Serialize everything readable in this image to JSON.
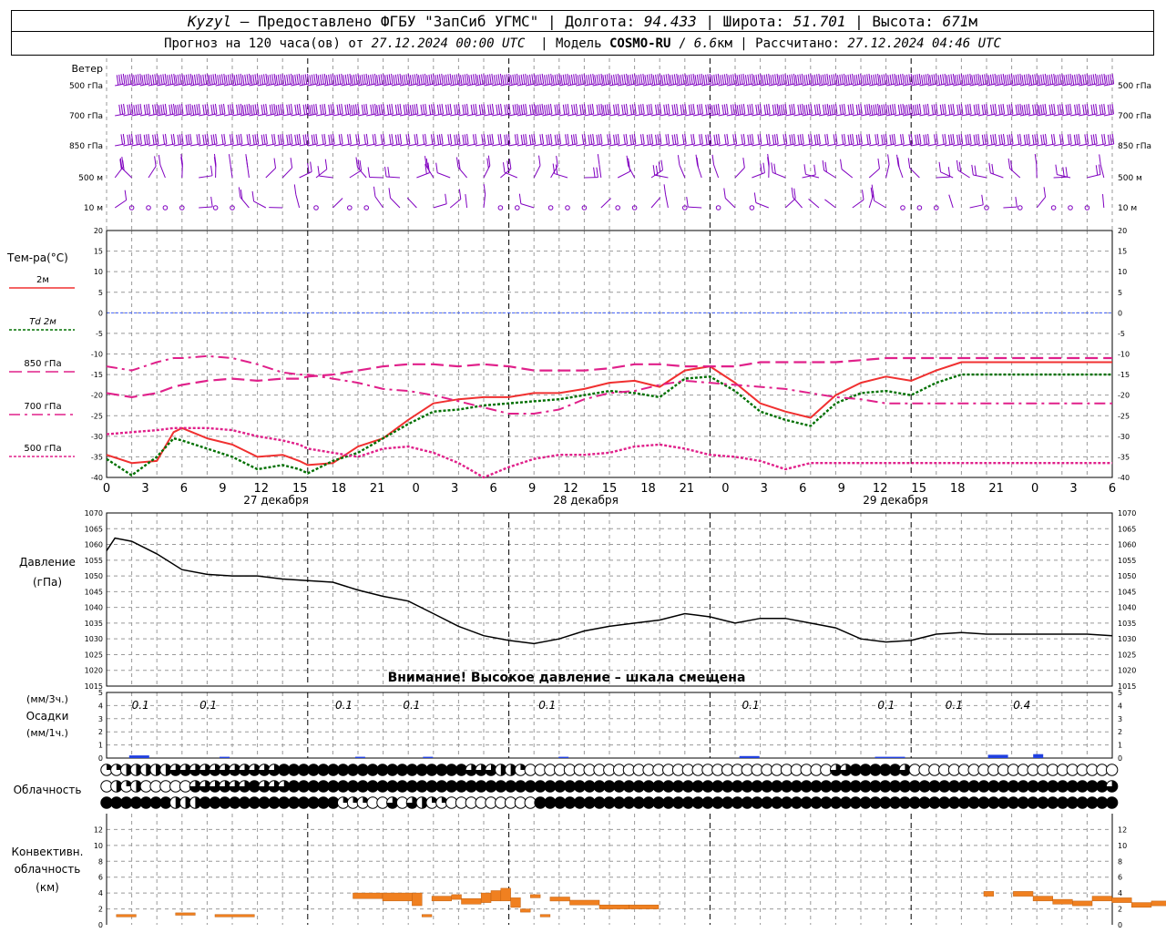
{
  "header": {
    "station": "Kyzyl",
    "dash": "–",
    "provider": "Предоставлено ФГБУ \"ЗапСиб УГМС\"",
    "lon_label": "Долгота:",
    "lon": "94.433",
    "lat_label": "Широта:",
    "lat": "51.701",
    "alt_label": "Высота:",
    "alt": "671",
    "alt_unit": "м",
    "forecast_label": "Прогноз на 120 часа(ов) от",
    "forecast_from": "27.12.2024 00:00 UTC",
    "model_label": "Модель",
    "model": "COSMO-RU",
    "resolution": "6.6",
    "res_unit": "км",
    "calc_label": "Рассчитано:",
    "calc_time": "27.12.2024 04:46 UTC"
  },
  "colors": {
    "wind": "#8000c0",
    "t2m": "#f03030",
    "td2m": "#007000",
    "t850": "#e0208a",
    "pressure": "#000000",
    "precip": "#2040e0",
    "convective": "#f08020",
    "zero_line": "#4060ff"
  },
  "wind_panel": {
    "title": "Ветер",
    "levels": [
      "500 гПа",
      "700 гПа",
      "850 гПа",
      "500 м",
      "10 м"
    ]
  },
  "temp_panel": {
    "title": "Тем-ра(°C)",
    "legend": [
      {
        "label": "2м",
        "color": "#f03030",
        "dash": "solid"
      },
      {
        "label": "Td  2м",
        "color": "#007000",
        "dash": "dot"
      },
      {
        "label": "850 гПа",
        "color": "#e0208a",
        "dash": "longdash"
      },
      {
        "label": "700 гПа",
        "color": "#e0208a",
        "dash": "dashdot"
      },
      {
        "label": "500 гПа",
        "color": "#e0208a",
        "dash": "dot"
      }
    ]
  },
  "time_axis": {
    "hour_labels": [
      "0",
      "3",
      "6",
      "9",
      "12",
      "15",
      "18",
      "21",
      "0",
      "3",
      "6",
      "9",
      "12",
      "15",
      "18",
      "21",
      "0",
      "3",
      "6",
      "9",
      "12",
      "15",
      "18",
      "21",
      "0",
      "3",
      "6"
    ],
    "date_labels": [
      "27 декабря",
      "28 декабря",
      "29 декабря"
    ]
  },
  "pressure_panel": {
    "title": "Давление",
    "unit": "(гПа)",
    "warning": "Внимание! Высокое давление – шкала смещена"
  },
  "precip_panel": {
    "unit_3h": "(мм/3ч.)",
    "title": "Осадки",
    "unit_1h": "(мм/1ч.)",
    "labels": [
      {
        "x": 1.5,
        "text": "0.1"
      },
      {
        "x": 4.5,
        "text": "0.1"
      },
      {
        "x": 10.5,
        "text": "0.1"
      },
      {
        "x": 13.5,
        "text": "0.1"
      },
      {
        "x": 19.5,
        "text": "0.1"
      },
      {
        "x": 28.5,
        "text": "0.1"
      },
      {
        "x": 34.5,
        "text": "0.1"
      },
      {
        "x": 37.5,
        "text": "0.1"
      },
      {
        "x": 40.5,
        "text": "0.4"
      }
    ]
  },
  "cloud_panel": {
    "title": "Облачность"
  },
  "conv_panel": {
    "title1": "Конвективн.",
    "title2": "облачность",
    "unit": "(км)"
  },
  "chart_data": [
    {
      "type": "line",
      "name": "temperature",
      "x_unit": "forecast hours from 27.12.2024 00:00 UTC",
      "ylim": [
        -40,
        20
      ],
      "yticks": [
        -40,
        -35,
        -30,
        -25,
        -20,
        -15,
        -10,
        -5,
        0,
        5,
        10,
        15,
        20
      ],
      "x": [
        0,
        3,
        6,
        8,
        9,
        12,
        15,
        18,
        21,
        23,
        24,
        27,
        30,
        33,
        36,
        39,
        42,
        45,
        48,
        51,
        54,
        57,
        60,
        63,
        66,
        69,
        72,
        75,
        78,
        81,
        84,
        87,
        90,
        93,
        96,
        99,
        102,
        105,
        108,
        111,
        114,
        117,
        120
      ],
      "series": [
        {
          "name": "2м",
          "values": [
            -34.5,
            -36.5,
            -36,
            -29,
            -28,
            -30.5,
            -32,
            -35,
            -34.5,
            -36,
            -37,
            -36.5,
            -32.5,
            -30.5,
            -26,
            -22,
            -21,
            -20.5,
            -20.5,
            -19.5,
            -19.5,
            -18.5,
            -17,
            -16.5,
            -18,
            -14,
            -13,
            -17,
            -22,
            -24,
            -25.5,
            -20,
            -17,
            -15.5,
            -16.5,
            -14,
            -12,
            -12,
            -12,
            -12,
            -12,
            -12,
            -12
          ]
        },
        {
          "name": "Td  2м",
          "values": [
            -35.5,
            -39.5,
            -35,
            -30.5,
            -31,
            -33,
            -35,
            -38,
            -37,
            -38,
            -39,
            -36,
            -34,
            -30.5,
            -27,
            -24,
            -23.5,
            -22.5,
            -22,
            -21.5,
            -21,
            -20,
            -19,
            -19.5,
            -20.5,
            -16,
            -15.5,
            -19,
            -24,
            -26,
            -27.5,
            -22,
            -19.5,
            -19,
            -20,
            -17,
            -15,
            -15,
            -15,
            -15,
            -15,
            -15,
            -15
          ]
        },
        {
          "name": "850 гПа",
          "values": [
            -19.5,
            -20.5,
            -19.5,
            -18,
            -17.5,
            -16.5,
            -16,
            -16.5,
            -16,
            -16,
            -15.5,
            -15,
            -14,
            -13,
            -12.5,
            -12.5,
            -13,
            -12.5,
            -13,
            -14,
            -14,
            -14,
            -13.5,
            -12.5,
            -12.5,
            -13,
            -13,
            -13,
            -12,
            -12,
            -12,
            -12,
            -11.5,
            -11,
            -11,
            -11,
            -11,
            -11,
            -11,
            -11,
            -11,
            -11,
            -11
          ]
        },
        {
          "name": "700 гПа",
          "values": [
            -13,
            -14,
            -12,
            -11,
            -11,
            -10.5,
            -11,
            -12.5,
            -14.5,
            -15,
            -15,
            -16,
            -17,
            -18.5,
            -19,
            -20,
            -21.5,
            -23,
            -24.5,
            -24.5,
            -23.5,
            -21,
            -19.5,
            -19,
            -17.5,
            -16.5,
            -17,
            -17.5,
            -18,
            -18.5,
            -19.5,
            -20.5,
            -21,
            -22,
            -22,
            -22,
            -22,
            -22,
            -22,
            -22,
            -22,
            -22,
            -22
          ]
        },
        {
          "name": "500 гПа",
          "values": [
            -29.5,
            -29,
            -28.5,
            -28,
            -28,
            -28,
            -28.5,
            -30,
            -31,
            -32,
            -33,
            -34,
            -35,
            -33,
            -32.5,
            -34,
            -36.5,
            -40,
            -37.5,
            -35.5,
            -34.5,
            -34.5,
            -34,
            -32.5,
            -32,
            -33,
            -34.5,
            -35,
            -36,
            -38,
            -36.5,
            -36.5,
            -36.5,
            -36.5,
            -36.5,
            -36.5,
            -36.5,
            -36.5,
            -36.5,
            -36.5,
            -36.5,
            -36.5,
            -36.5
          ]
        }
      ]
    },
    {
      "type": "line",
      "name": "pressure",
      "ylim": [
        1015,
        1070
      ],
      "yticks": [
        1015,
        1020,
        1025,
        1030,
        1035,
        1040,
        1045,
        1050,
        1055,
        1060,
        1065,
        1070
      ],
      "x": [
        0,
        1,
        3,
        6,
        9,
        12,
        15,
        18,
        21,
        24,
        27,
        30,
        33,
        36,
        39,
        42,
        45,
        48,
        51,
        54,
        57,
        60,
        63,
        66,
        69,
        72,
        75,
        78,
        81,
        84,
        87,
        90,
        93,
        96,
        99,
        102,
        105,
        108,
        111,
        114,
        117,
        120
      ],
      "values": [
        1058,
        1062,
        1061,
        1057,
        1052,
        1050.5,
        1050,
        1050,
        1049,
        1048.5,
        1048,
        1045.5,
        1043.5,
        1042,
        1038,
        1034,
        1031,
        1029.5,
        1028.5,
        1030,
        1032.5,
        1034,
        1035,
        1036,
        1038,
        1037,
        1035,
        1036.5,
        1036.5,
        1035,
        1033.5,
        1030,
        1029,
        1029.5,
        1031.5,
        1032,
        1031.5,
        1031.5,
        1031.5,
        1031.5,
        1031.5,
        1031
      ]
    },
    {
      "type": "bar",
      "name": "precipitation",
      "ylim": [
        0,
        5
      ],
      "bars_mm_per_1h": [
        {
          "x": 1,
          "w": 2,
          "v": 0.2
        },
        {
          "x": 5,
          "w": 1,
          "v": 0.1
        },
        {
          "x": 11,
          "w": 1,
          "v": 0.1
        },
        {
          "x": 14,
          "w": 1,
          "v": 0.1
        },
        {
          "x": 20,
          "w": 1,
          "v": 0.1
        },
        {
          "x": 28,
          "w": 2,
          "v": 0.15
        },
        {
          "x": 34,
          "w": 3,
          "v": 0.1
        },
        {
          "x": 39,
          "w": 2,
          "v": 0.25
        },
        {
          "x": 41,
          "w": 1,
          "v": 0.3
        }
      ]
    },
    {
      "type": "table",
      "name": "cloudiness",
      "legend_codes": "0=clear, 1=1/4, 2=1/2, 3=3/4, 4=overcast; rows: upper, middle, lower",
      "rows": [
        "1122222333333333334444444444444444444333221000000000000000000000000000000033444443000000000000000000000",
        "0212000003333334333444444444444444444444444444444444444444444444444444444444444444444444444444444444443",
        "4444444222444444444444441110030321100000000044444444444444444444444444444444444444444444444444444444444"
      ]
    },
    {
      "type": "bar",
      "name": "convective clouds",
      "ylim": [
        0,
        12
      ],
      "yticks": [
        0,
        2,
        4,
        6,
        8,
        10,
        12
      ],
      "segments_km": [
        {
          "x0": 1,
          "x1": 3,
          "bottom": 1,
          "top": 1.3
        },
        {
          "x0": 7,
          "x1": 9,
          "bottom": 1.2,
          "top": 1.5
        },
        {
          "x0": 11,
          "x1": 15,
          "bottom": 1,
          "top": 1.3
        },
        {
          "x0": 25,
          "x1": 28,
          "bottom": 3.3,
          "top": 4
        },
        {
          "x0": 28,
          "x1": 31,
          "bottom": 3,
          "top": 4
        },
        {
          "x0": 31,
          "x1": 32,
          "bottom": 2.4,
          "top": 4
        },
        {
          "x0": 32,
          "x1": 33,
          "bottom": 1,
          "top": 1.3
        },
        {
          "x0": 33,
          "x1": 35,
          "bottom": 3,
          "top": 3.6
        },
        {
          "x0": 35,
          "x1": 36,
          "bottom": 3.2,
          "top": 3.8
        },
        {
          "x0": 36,
          "x1": 38,
          "bottom": 2.6,
          "top": 3.3
        },
        {
          "x0": 38,
          "x1": 39,
          "bottom": 2.8,
          "top": 4
        },
        {
          "x0": 39,
          "x1": 40,
          "bottom": 3,
          "top": 4.3
        },
        {
          "x0": 40,
          "x1": 41,
          "bottom": 3,
          "top": 4.6
        },
        {
          "x0": 41,
          "x1": 42,
          "bottom": 2.2,
          "top": 3.4
        },
        {
          "x0": 42,
          "x1": 43,
          "bottom": 1.6,
          "top": 2
        },
        {
          "x0": 43,
          "x1": 44,
          "bottom": 3.4,
          "top": 3.8
        },
        {
          "x0": 44,
          "x1": 45,
          "bottom": 1,
          "top": 1.3
        },
        {
          "x0": 45,
          "x1": 47,
          "bottom": 3,
          "top": 3.5
        },
        {
          "x0": 47,
          "x1": 50,
          "bottom": 2.5,
          "top": 3.1
        },
        {
          "x0": 50,
          "x1": 53,
          "bottom": 2,
          "top": 2.5
        },
        {
          "x0": 53,
          "x1": 56,
          "bottom": 2,
          "top": 2.5
        },
        {
          "x0": 89,
          "x1": 90,
          "bottom": 3.6,
          "top": 4.2
        },
        {
          "x0": 92,
          "x1": 94,
          "bottom": 3.6,
          "top": 4.2
        },
        {
          "x0": 94,
          "x1": 96,
          "bottom": 3,
          "top": 3.6
        },
        {
          "x0": 96,
          "x1": 98,
          "bottom": 2.6,
          "top": 3.2
        },
        {
          "x0": 98,
          "x1": 100,
          "bottom": 2.4,
          "top": 3
        },
        {
          "x0": 100,
          "x1": 102,
          "bottom": 3,
          "top": 3.6
        },
        {
          "x0": 102,
          "x1": 104,
          "bottom": 2.8,
          "top": 3.4
        },
        {
          "x0": 104,
          "x1": 106,
          "bottom": 2.2,
          "top": 2.8
        },
        {
          "x0": 106,
          "x1": 108,
          "bottom": 2.4,
          "top": 3
        },
        {
          "x0": 108,
          "x1": 110,
          "bottom": 2.4,
          "top": 3
        },
        {
          "x0": 110,
          "x1": 111,
          "bottom": 3.4,
          "top": 4
        }
      ]
    }
  ]
}
